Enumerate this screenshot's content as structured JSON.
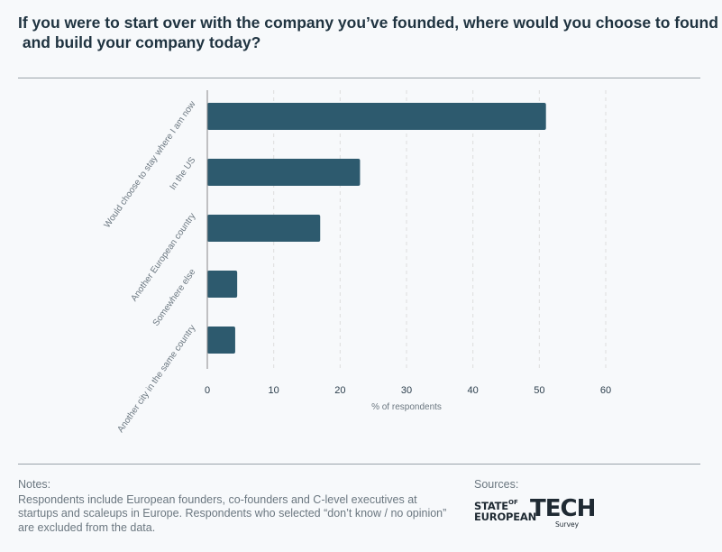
{
  "title_lines": [
    "If you were to start over with the company you’ve founded, where would you choose to found",
    " and build your company today?"
  ],
  "notes": {
    "label": "Notes:",
    "text": "Respondents include European founders, co-founders and C-level executives at startups and scaleups in Europe. Respondents who selected “don’t know / no opinion” are excluded from the data."
  },
  "sources": {
    "label": "Sources:",
    "logo": {
      "state": "STATE",
      "of": "OF",
      "european": "EUROPEAN",
      "tech": "TECH",
      "survey": "Survey"
    }
  },
  "colors": {
    "bar": "#2d5a6e",
    "axis": "#888888",
    "grid": "#dddddd",
    "text": "#2c3e4c"
  },
  "chart_data": {
    "type": "bar",
    "orientation": "horizontal",
    "categories": [
      "Would choose to stay where I am now",
      "In the US",
      "Another European country",
      "Somewhere else",
      "Another city in the same country"
    ],
    "values": [
      51,
      23,
      17,
      4.5,
      4.2
    ],
    "xlabel": "% of respondents",
    "ylabel": "",
    "xlim": [
      0,
      60
    ],
    "xticks": [
      "0",
      "10",
      "20",
      "30",
      "40",
      "50",
      "60"
    ],
    "grid": "vertical dashed"
  }
}
